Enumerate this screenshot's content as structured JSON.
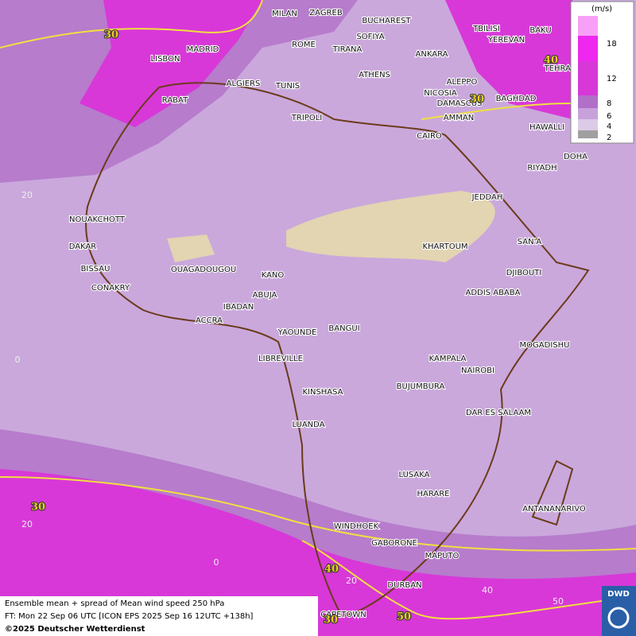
{
  "legend": {
    "unit": "(m/s)",
    "levels": [
      "18",
      "12",
      "8",
      "6",
      "4",
      "2"
    ]
  },
  "cities": [
    "MILAN",
    "ZAGREB",
    "BUCHAREST",
    "SOFIYA",
    "ROME",
    "TIRANA",
    "ANKARA",
    "TBILISI",
    "YEREVAN",
    "BAKU",
    "TEHRAN",
    "LISBON",
    "MADRID",
    "ALGIERS",
    "TUNIS",
    "ATHENS",
    "ALEPPO",
    "NICOSIA",
    "BAGHDAD",
    "DAMASCUS",
    "AMMAN",
    "RABAT",
    "TRIPOLI",
    "CAIRO",
    "HAWALLI",
    "DOHA",
    "RIYADH",
    "JEDDAH",
    "NOUAKCHOTT",
    "DAKAR",
    "BISSAU",
    "CONAKRY",
    "OUAGADOUGOU",
    "KANO",
    "ABUJA",
    "IBADAN",
    "ACCRA",
    "KHARTOUM",
    "SAN'A",
    "DJIBOUTI",
    "ADDIS ABABA",
    "YAOUNDE",
    "BANGUI",
    "MOGADISHU",
    "LIBREVILLE",
    "KAMPALA",
    "NAIROBI",
    "BUJUMBURA",
    "KINSHASA",
    "DAR ES SALAAM",
    "LUANDA",
    "LUSAKA",
    "HARARE",
    "ANTANANARIVO",
    "WINDHOEK",
    "GABORONE",
    "MAPUTO",
    "DURBAN",
    "CAPETOWN"
  ],
  "contour_labels": [
    "30",
    "30",
    "40",
    "30",
    "40",
    "50",
    "30"
  ],
  "grid_labels": [
    "20",
    "0",
    "20",
    "0",
    "20",
    "40",
    "50"
  ],
  "footer": {
    "line1": "Ensemble mean + spread of Mean wind speed 250 hPa",
    "line2": "FT: Mon 22 Sep 06 UTC [ICON EPS 2025 Sep 16 12UTC +138h]",
    "line3": "©2025 Deutscher Wetterdienst"
  },
  "logo": "DWD"
}
